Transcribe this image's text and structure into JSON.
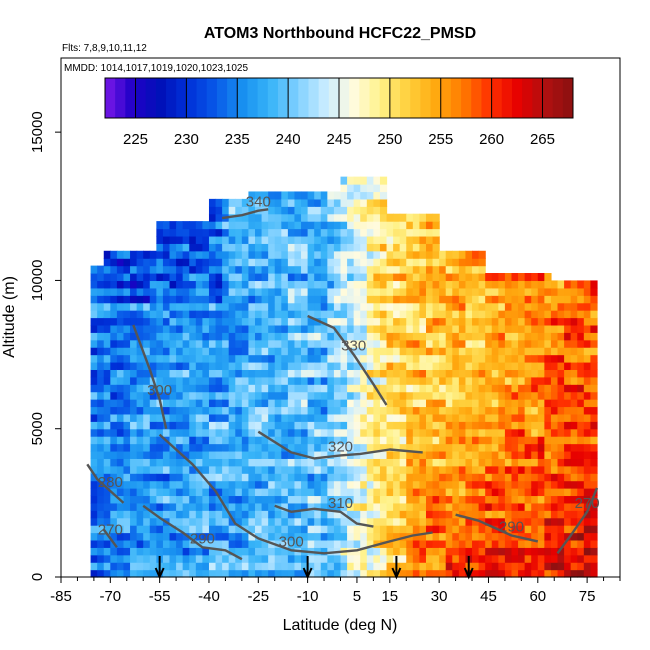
{
  "chart_data": {
    "type": "heatmap",
    "title": "ATOM3 Northbound HCFC22_PMSD",
    "subtitle_lines": [
      "Flts: 7,8,9,10,11,12",
      "MMDD: 1014,1017,1019,1020,1023,1025"
    ],
    "xlabel": "Latitude (deg N)",
    "ylabel": "Altitude (m)",
    "xlim": [
      -85,
      85
    ],
    "ylim": [
      0,
      17500
    ],
    "x_ticks": [
      -85,
      -70,
      -55,
      -40,
      -25,
      -10,
      5,
      15,
      30,
      45,
      60,
      75
    ],
    "y_ticks": [
      0,
      5000,
      10000,
      15000
    ],
    "colorbar": {
      "range": [
        222,
        268
      ],
      "ticks": [
        225,
        230,
        235,
        240,
        245,
        250,
        255,
        260,
        265
      ],
      "colors": [
        "#7a18e8",
        "#2000c8",
        "#0010b8",
        "#0030d8",
        "#0858e8",
        "#1890f0",
        "#38b4f8",
        "#80d0ff",
        "#c8ecff",
        "#fffbe0",
        "#fff28a",
        "#ffd03c",
        "#ffaa10",
        "#ff7a00",
        "#ff3000",
        "#e60000",
        "#b01010",
        "#8a1010"
      ]
    },
    "grid": false,
    "field_note": "",
    "contours": [
      {
        "label": "340",
        "points": [
          [
            -36,
            12100
          ],
          [
            -30,
            12200
          ],
          [
            -25,
            12350
          ],
          [
            -22,
            12400
          ]
        ]
      },
      {
        "label": "330",
        "points": [
          [
            -10,
            8800
          ],
          [
            -2,
            8400
          ],
          [
            4,
            7500
          ],
          [
            10,
            6500
          ],
          [
            14,
            5800
          ]
        ]
      },
      {
        "label": "320",
        "points": [
          [
            -25,
            4900
          ],
          [
            -15,
            4200
          ],
          [
            -8,
            4000
          ],
          [
            0,
            4100
          ],
          [
            6,
            4150
          ],
          [
            15,
            4300
          ],
          [
            25,
            4200
          ]
        ]
      },
      {
        "label": "310",
        "points": [
          [
            -20,
            2400
          ],
          [
            -15,
            2200
          ],
          [
            -8,
            2300
          ],
          [
            0,
            2200
          ],
          [
            5,
            1800
          ],
          [
            10,
            1700
          ]
        ]
      },
      {
        "label": "300",
        "points": [
          [
            -55,
            4800
          ],
          [
            -45,
            3800
          ],
          [
            -38,
            2900
          ],
          [
            -32,
            1800
          ],
          [
            -25,
            1300
          ],
          [
            -15,
            900
          ],
          [
            -5,
            800
          ],
          [
            5,
            900
          ],
          [
            15,
            1200
          ],
          [
            22,
            1400
          ],
          [
            28,
            1500
          ]
        ]
      },
      {
        "label": "300",
        "points": [
          [
            -63,
            8500
          ],
          [
            -58,
            7000
          ],
          [
            -55,
            6000
          ],
          [
            -53,
            5000
          ]
        ]
      },
      {
        "label": "290",
        "points": [
          [
            -60,
            2400
          ],
          [
            -55,
            2000
          ],
          [
            -48,
            1500
          ],
          [
            -42,
            1000
          ],
          [
            -35,
            900
          ],
          [
            -30,
            600
          ]
        ]
      },
      {
        "label": "290",
        "points": [
          [
            35,
            2100
          ],
          [
            42,
            1900
          ],
          [
            48,
            1600
          ],
          [
            52,
            1400
          ],
          [
            56,
            1300
          ],
          [
            60,
            1200
          ]
        ]
      },
      {
        "label": "280",
        "points": [
          [
            -77,
            3800
          ],
          [
            -74,
            3300
          ],
          [
            -70,
            2900
          ],
          [
            -66,
            2500
          ]
        ]
      },
      {
        "label": "270",
        "points": [
          [
            -72,
            1600
          ],
          [
            -70,
            1300
          ],
          [
            -68,
            1000
          ]
        ]
      },
      {
        "label": "270",
        "points": [
          [
            66,
            800
          ],
          [
            70,
            1400
          ],
          [
            75,
            2200
          ],
          [
            78,
            3000
          ]
        ]
      }
    ],
    "arrows_latitude": [
      -55,
      -10,
      17,
      39
    ]
  }
}
